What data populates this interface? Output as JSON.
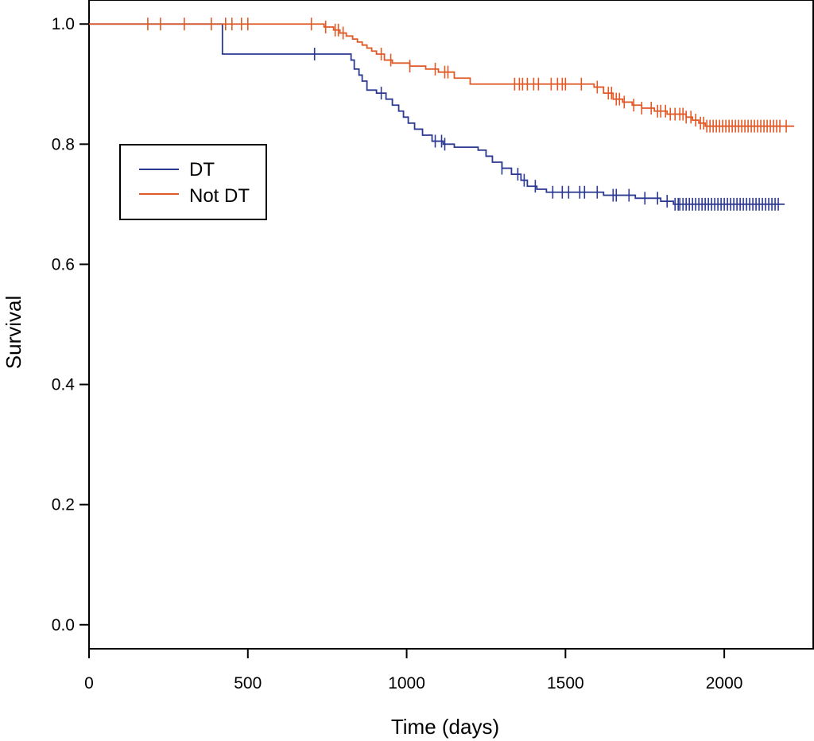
{
  "chart_data": {
    "type": "line",
    "subtype": "kaplan-meier",
    "title": "",
    "xlabel": "Time (days)",
    "ylabel": "Survival",
    "xlim": [
      0,
      2280
    ],
    "ylim": [
      -0.04,
      1.04
    ],
    "xticks": [
      0,
      500,
      1000,
      1500,
      2000
    ],
    "xtick_labels": [
      "0",
      "500",
      "1000",
      "1500",
      "2000"
    ],
    "yticks": [
      0.0,
      0.2,
      0.4,
      0.6,
      0.8,
      1.0
    ],
    "ytick_labels": [
      "0.0",
      "0.2",
      "0.4",
      "0.6",
      "0.8",
      "1.0"
    ],
    "grid": false,
    "legend": {
      "position": "upper-left",
      "entries": [
        "DT",
        "Not DT"
      ]
    },
    "series": [
      {
        "name": "DT",
        "color": "#2b3990",
        "steps": [
          [
            0,
            1.0
          ],
          [
            420,
            0.95
          ],
          [
            825,
            0.94
          ],
          [
            835,
            0.925
          ],
          [
            850,
            0.915
          ],
          [
            860,
            0.905
          ],
          [
            875,
            0.89
          ],
          [
            905,
            0.885
          ],
          [
            935,
            0.875
          ],
          [
            955,
            0.865
          ],
          [
            975,
            0.855
          ],
          [
            990,
            0.845
          ],
          [
            1005,
            0.835
          ],
          [
            1025,
            0.825
          ],
          [
            1050,
            0.815
          ],
          [
            1080,
            0.805
          ],
          [
            1115,
            0.8
          ],
          [
            1150,
            0.795
          ],
          [
            1225,
            0.79
          ],
          [
            1250,
            0.78
          ],
          [
            1270,
            0.77
          ],
          [
            1300,
            0.76
          ],
          [
            1330,
            0.75
          ],
          [
            1360,
            0.74
          ],
          [
            1380,
            0.73
          ],
          [
            1410,
            0.725
          ],
          [
            1440,
            0.72
          ],
          [
            1620,
            0.715
          ],
          [
            1720,
            0.71
          ],
          [
            1800,
            0.705
          ],
          [
            1840,
            0.7
          ]
        ],
        "end_x": 2190,
        "censored": [
          710,
          920,
          1090,
          1110,
          1120,
          1300,
          1350,
          1370,
          1405,
          1460,
          1490,
          1510,
          1545,
          1560,
          1600,
          1650,
          1660,
          1700,
          1750,
          1790,
          1820,
          1845,
          1855,
          1860,
          1870,
          1880,
          1890,
          1900,
          1910,
          1920,
          1930,
          1940,
          1950,
          1960,
          1970,
          1980,
          1990,
          2000,
          2010,
          2020,
          2030,
          2040,
          2050,
          2060,
          2070,
          2080,
          2090,
          2100,
          2110,
          2120,
          2130,
          2140,
          2150,
          2160,
          2170
        ]
      },
      {
        "name": "Not DT",
        "color": "#e05a28",
        "steps": [
          [
            0,
            1.0
          ],
          [
            740,
            0.995
          ],
          [
            770,
            0.99
          ],
          [
            790,
            0.985
          ],
          [
            810,
            0.98
          ],
          [
            830,
            0.975
          ],
          [
            845,
            0.97
          ],
          [
            860,
            0.965
          ],
          [
            875,
            0.96
          ],
          [
            890,
            0.955
          ],
          [
            905,
            0.95
          ],
          [
            930,
            0.94
          ],
          [
            955,
            0.935
          ],
          [
            1010,
            0.93
          ],
          [
            1060,
            0.925
          ],
          [
            1100,
            0.92
          ],
          [
            1150,
            0.91
          ],
          [
            1200,
            0.9
          ],
          [
            1590,
            0.895
          ],
          [
            1620,
            0.885
          ],
          [
            1650,
            0.875
          ],
          [
            1680,
            0.87
          ],
          [
            1710,
            0.865
          ],
          [
            1740,
            0.86
          ],
          [
            1780,
            0.855
          ],
          [
            1820,
            0.85
          ],
          [
            1880,
            0.845
          ],
          [
            1900,
            0.84
          ],
          [
            1920,
            0.835
          ],
          [
            1940,
            0.83
          ]
        ],
        "end_x": 2220,
        "censored": [
          185,
          225,
          300,
          385,
          430,
          450,
          480,
          500,
          700,
          745,
          775,
          785,
          800,
          920,
          950,
          1010,
          1090,
          1120,
          1130,
          1340,
          1355,
          1365,
          1380,
          1400,
          1415,
          1455,
          1475,
          1490,
          1500,
          1550,
          1600,
          1635,
          1645,
          1660,
          1670,
          1685,
          1715,
          1740,
          1770,
          1790,
          1800,
          1815,
          1830,
          1845,
          1860,
          1870,
          1880,
          1895,
          1910,
          1925,
          1935,
          1945,
          1955,
          1965,
          1975,
          1985,
          1995,
          2005,
          2015,
          2025,
          2035,
          2045,
          2055,
          2065,
          2075,
          2085,
          2095,
          2105,
          2115,
          2125,
          2135,
          2145,
          2155,
          2165,
          2175,
          2195
        ]
      }
    ]
  }
}
